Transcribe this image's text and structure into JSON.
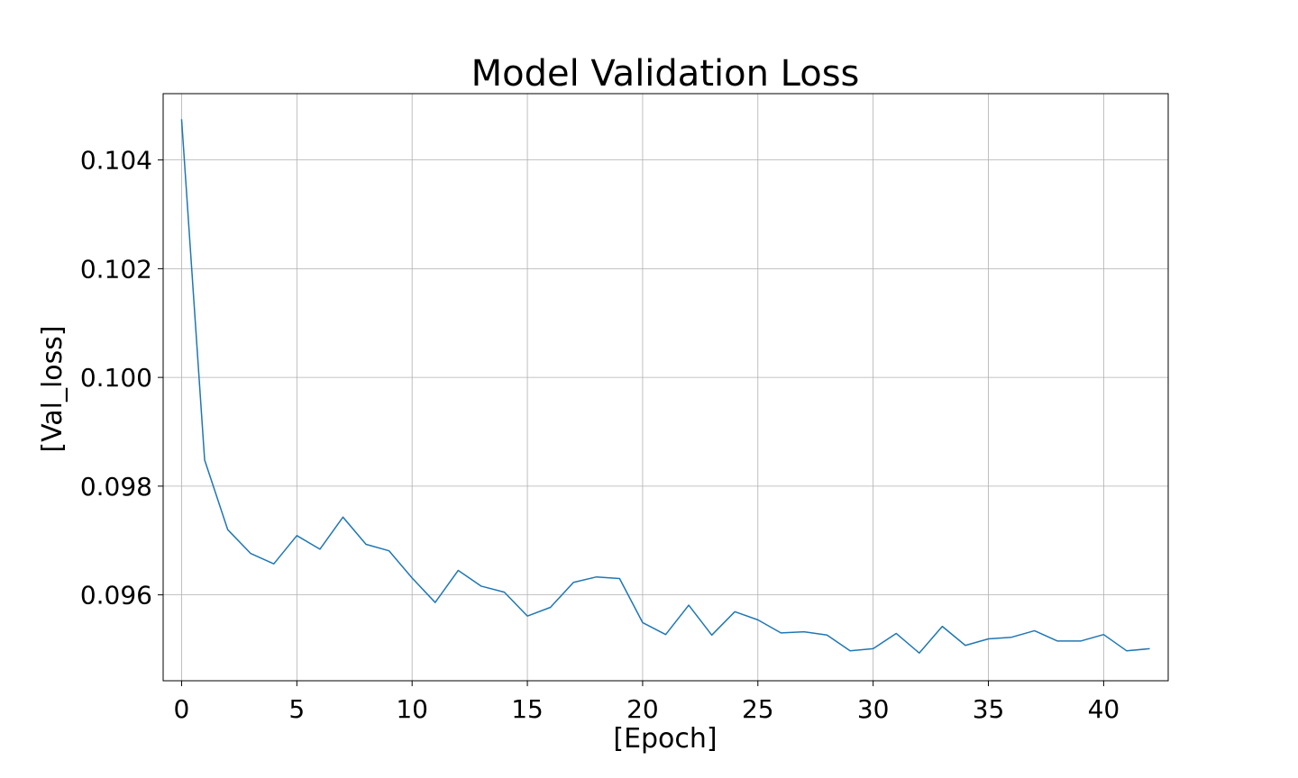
{
  "chart_data": {
    "type": "line",
    "title": "Model Validation Loss",
    "xlabel": "[Epoch]",
    "ylabel": "[Val_loss]",
    "xlim": [
      -0.8,
      42.8
    ],
    "ylim": [
      0.09442,
      0.10522
    ],
    "xticks": [
      0,
      5,
      10,
      15,
      20,
      25,
      30,
      35,
      40
    ],
    "xtick_labels": [
      "0",
      "5",
      "10",
      "15",
      "20",
      "25",
      "30",
      "35",
      "40"
    ],
    "yticks": [
      0.096,
      0.098,
      0.1,
      0.102,
      0.104
    ],
    "ytick_labels": [
      "0.096",
      "0.098",
      "0.100",
      "0.102",
      "0.104"
    ],
    "grid": true,
    "series": [
      {
        "color": "#1f77b4",
        "x": [
          0,
          1,
          2,
          3,
          4,
          5,
          6,
          7,
          8,
          9,
          10,
          11,
          12,
          13,
          14,
          15,
          16,
          17,
          18,
          19,
          20,
          21,
          22,
          23,
          24,
          25,
          26,
          27,
          28,
          29,
          30,
          31,
          32,
          33,
          34,
          35,
          36,
          37,
          38,
          39,
          40,
          41,
          42
        ],
        "values": [
          0.10475,
          0.09848,
          0.0972,
          0.09676,
          0.09657,
          0.09709,
          0.09684,
          0.09743,
          0.09693,
          0.09681,
          0.09631,
          0.09586,
          0.09645,
          0.09616,
          0.09605,
          0.09561,
          0.09577,
          0.09623,
          0.09633,
          0.0963,
          0.09549,
          0.09527,
          0.09581,
          0.09526,
          0.09569,
          0.09554,
          0.0953,
          0.09532,
          0.09526,
          0.09497,
          0.09501,
          0.09529,
          0.09493,
          0.09542,
          0.09507,
          0.09519,
          0.09522,
          0.09534,
          0.09515,
          0.09515,
          0.09527,
          0.09497,
          0.09501
        ]
      }
    ]
  }
}
